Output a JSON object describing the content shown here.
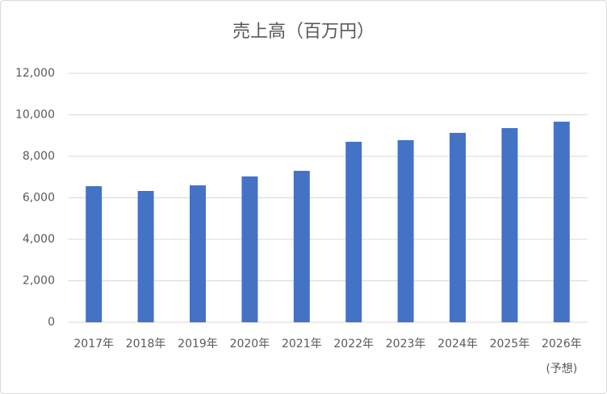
{
  "chart_data": {
    "type": "bar",
    "title": "売上高（百万円）",
    "categories": [
      "2017年",
      "2018年",
      "2019年",
      "2020年",
      "2021年",
      "2022年",
      "2023年",
      "2024年",
      "2025年",
      "2026年\n(予想)"
    ],
    "values": [
      6560,
      6330,
      6600,
      7030,
      7300,
      8700,
      8780,
      9130,
      9360,
      9670
    ],
    "color": "#4472c4",
    "ylim": [
      0,
      12000
    ],
    "yticks": [
      0,
      {
        "value": 2000,
        "label": "2,000"
      },
      {
        "value": 4000,
        "label": "4,000"
      },
      {
        "value": 6000,
        "label": "6,000"
      },
      {
        "value": 8000,
        "label": "8,000"
      },
      {
        "value": 10000,
        "label": "10,000"
      },
      {
        "value": 12000,
        "label": "12,000"
      }
    ],
    "grid": true
  }
}
